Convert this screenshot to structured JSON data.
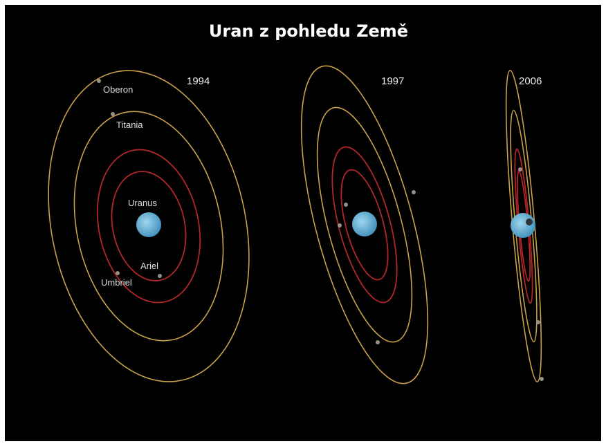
{
  "title": "Uran z pohledu Země",
  "years": [
    "1994",
    "1997",
    "2006"
  ],
  "labels": {
    "oberon": "Oberon",
    "titania": "Titania",
    "uranus": "Uranus",
    "ariel": "Ariel",
    "umbriel": "Umbriel"
  }
}
